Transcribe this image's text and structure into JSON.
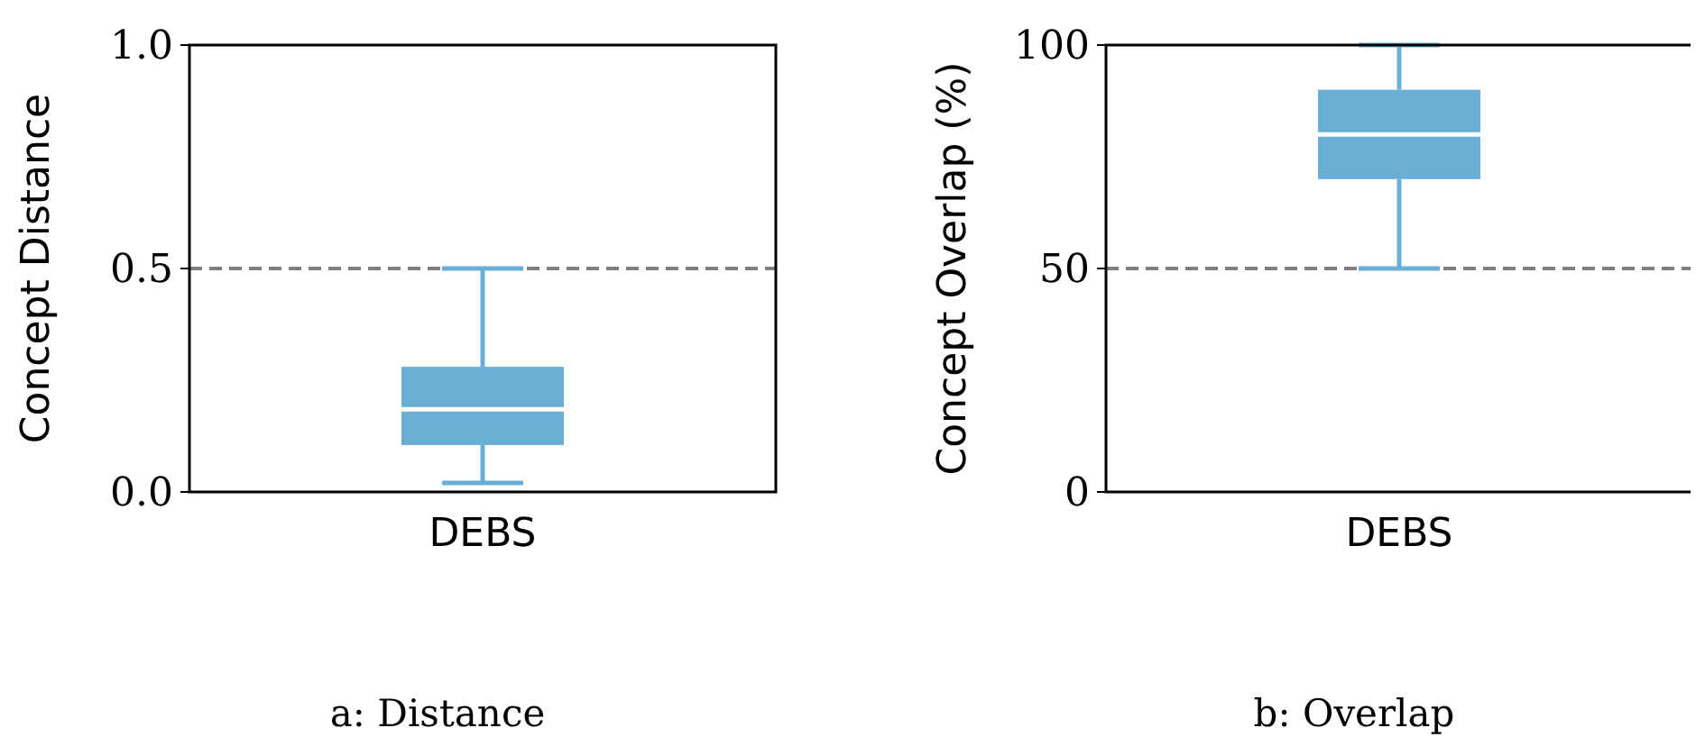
{
  "chart_data": [
    {
      "type": "box",
      "title": "a: Distance",
      "ylabel": "Concept Distance",
      "categories": [
        "DEBS"
      ],
      "color": "#6aaed6",
      "ylim": [
        0,
        1
      ],
      "yticks": [
        {
          "value": 0,
          "label": "0.0"
        },
        0.5,
        {
          "value": 1,
          "label": "1.0"
        }
      ],
      "ref_lines": [
        {
          "axis": "y",
          "value": 0.5,
          "color": "#808080",
          "line_style": "dashed"
        }
      ],
      "boxes": [
        {
          "low": 0.02,
          "q1": 0.105,
          "median": 0.185,
          "q3": 0.28,
          "high": 0.5
        }
      ]
    },
    {
      "type": "box",
      "title": "b: Overlap",
      "ylabel": "Concept Overlap (%)",
      "categories": [
        "DEBS"
      ],
      "color": "#6aaed6",
      "ylim": [
        0,
        100
      ],
      "yticks": [
        0,
        50,
        100
      ],
      "ref_lines": [
        {
          "axis": "y",
          "value": 50,
          "color": "#808080",
          "line_style": "dashed"
        }
      ],
      "boxes": [
        {
          "low": 50,
          "q1": 70,
          "median": 80,
          "q3": 90,
          "high": 100
        }
      ]
    }
  ]
}
